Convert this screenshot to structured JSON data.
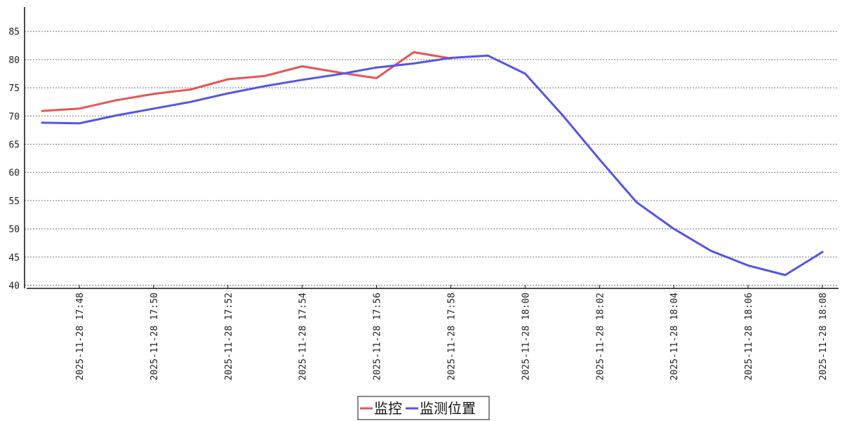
{
  "chart_data": {
    "type": "line",
    "x": [
      "2025-11-28 17:47",
      "2025-11-28 17:48",
      "2025-11-28 17:49",
      "2025-11-28 17:50",
      "2025-11-28 17:51",
      "2025-11-28 17:52",
      "2025-11-28 17:53",
      "2025-11-28 17:54",
      "2025-11-28 17:55",
      "2025-11-28 17:56",
      "2025-11-28 17:57",
      "2025-11-28 17:58",
      "2025-11-28 17:59",
      "2025-11-28 18:00",
      "2025-11-28 18:01",
      "2025-11-28 18:02",
      "2025-11-28 18:03",
      "2025-11-28 18:04",
      "2025-11-28 18:05",
      "2025-11-28 18:06",
      "2025-11-28 18:07",
      "2025-11-28 18:08"
    ],
    "x_tick_labels": [
      "2025-11-28 17:48",
      "2025-11-28 17:50",
      "2025-11-28 17:52",
      "2025-11-28 17:54",
      "2025-11-28 17:56",
      "2025-11-28 17:58",
      "2025-11-28 18:00",
      "2025-11-28 18:02",
      "2025-11-28 18:04",
      "2025-11-28 18:06",
      "2025-11-28 18:08"
    ],
    "y_ticks": [
      40,
      45,
      50,
      55,
      60,
      65,
      70,
      75,
      80,
      85
    ],
    "ylim": [
      39.5,
      89
    ],
    "grid": "horizontal dotted",
    "legend_position": "bottom-center",
    "title": "",
    "xlabel": "",
    "ylabel": "",
    "series": [
      {
        "name": "监控",
        "color": "#e85454",
        "values": [
          70.9,
          71.3,
          72.8,
          73.9,
          74.7,
          76.5,
          77.1,
          78.8,
          77.7,
          76.7,
          81.3,
          80.2,
          null,
          null,
          null,
          null,
          null,
          null,
          null,
          null,
          null,
          null
        ]
      },
      {
        "name": "监测位置",
        "color": "#5454e8",
        "values": [
          68.8,
          68.7,
          70.1,
          71.3,
          72.5,
          74.0,
          75.3,
          76.4,
          77.4,
          78.6,
          79.3,
          80.3,
          80.7,
          77.5,
          70.2,
          62.3,
          54.7,
          50.0,
          46.1,
          43.5,
          41.8,
          45.9
        ]
      }
    ]
  }
}
